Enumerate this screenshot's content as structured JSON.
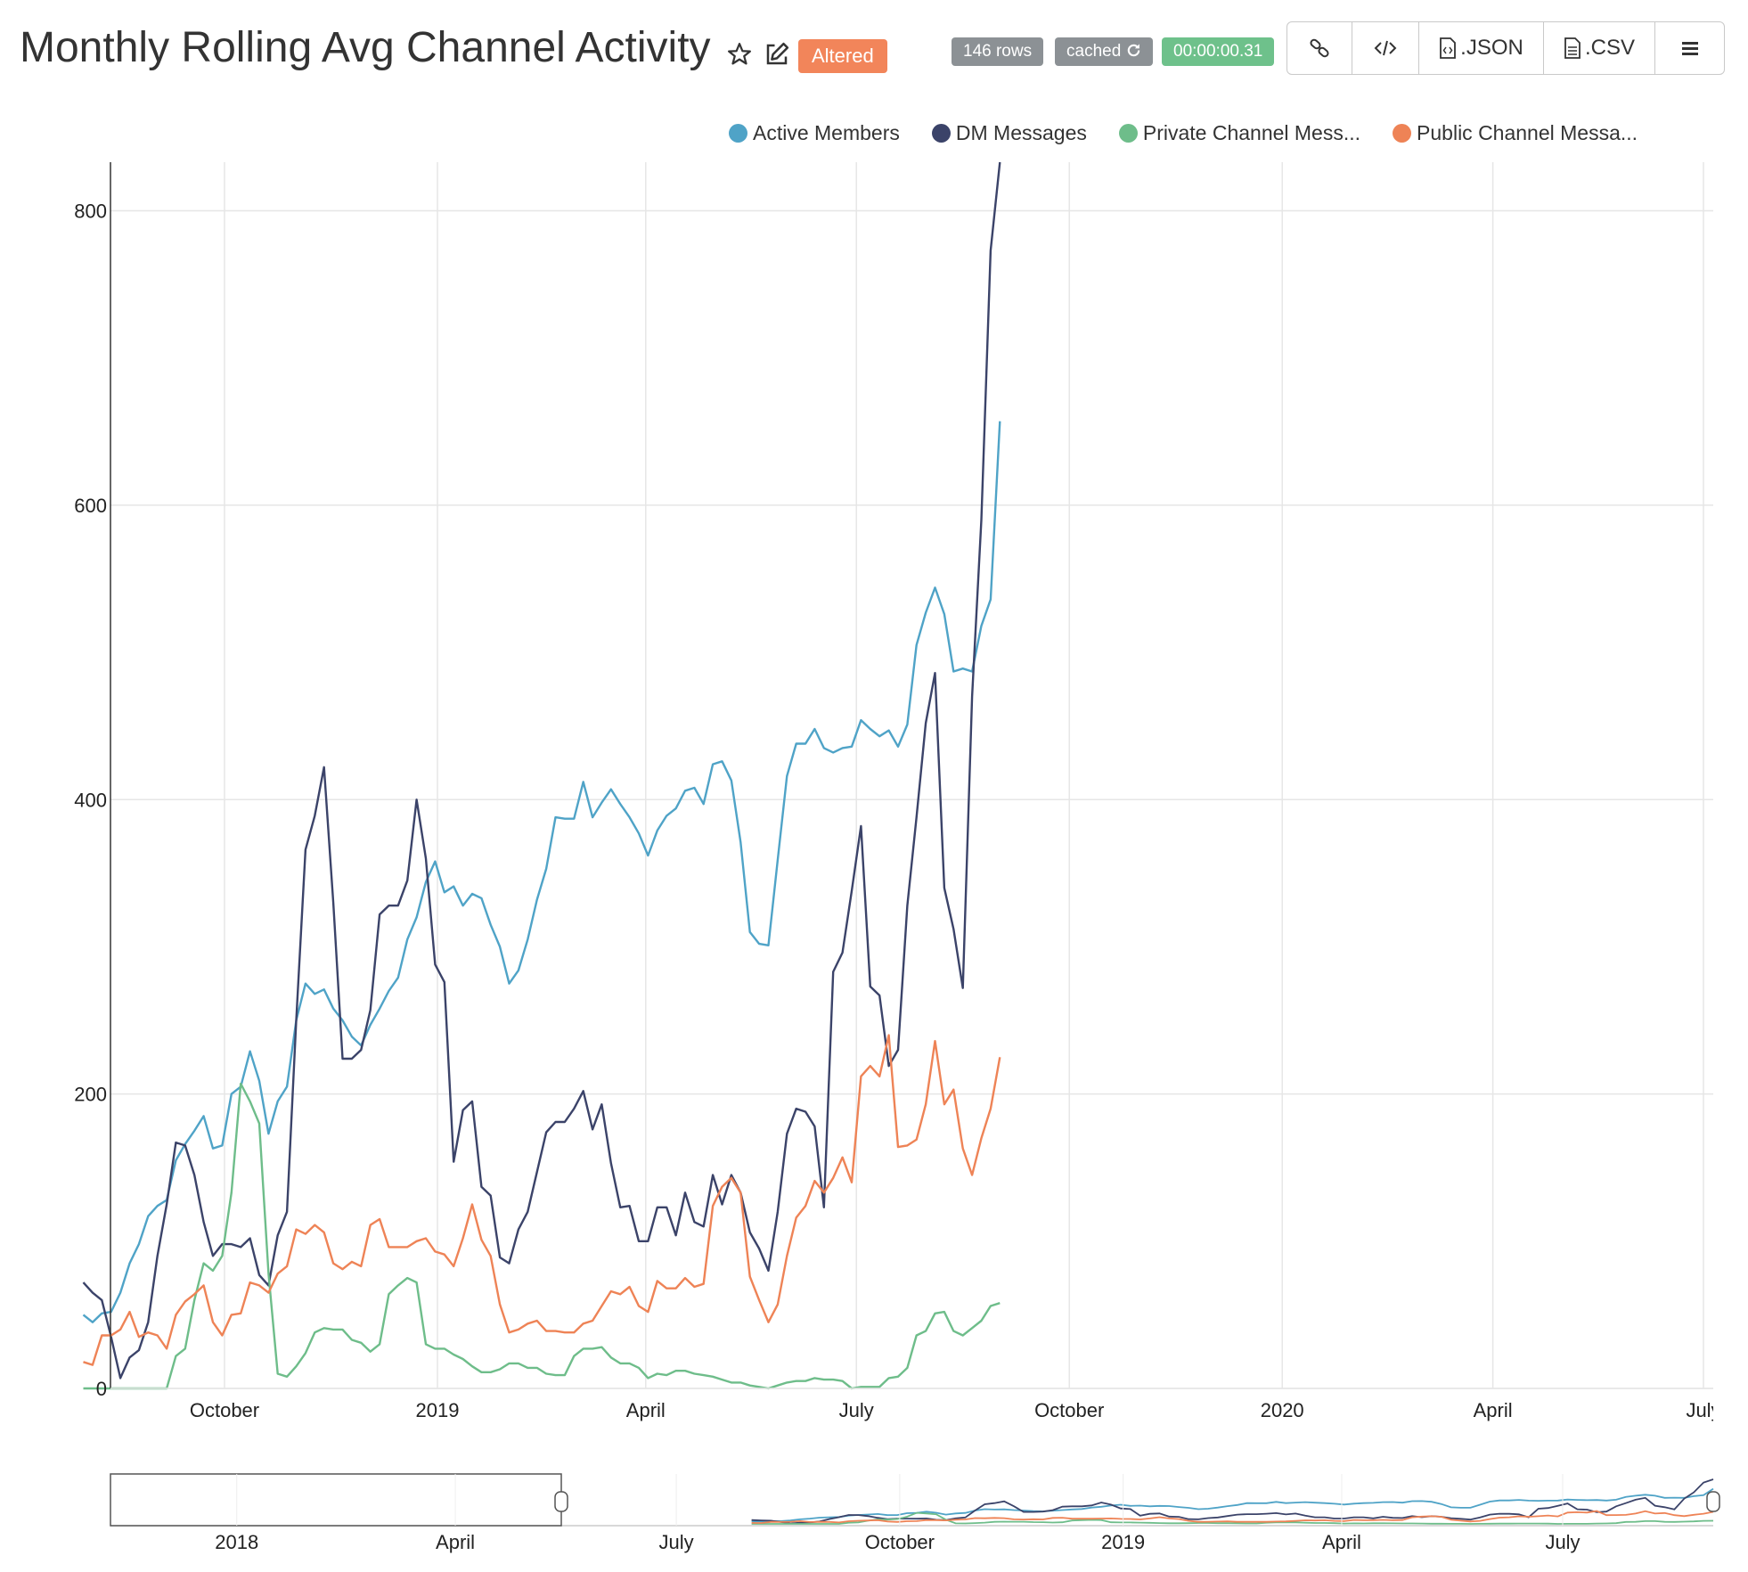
{
  "header": {
    "title": "Monthly Rolling Avg Channel Activity",
    "altered_label": "Altered",
    "rows_badge": "146 rows",
    "cached_badge": "cached",
    "time_badge": "00:00:00.31",
    "toolbar": {
      "json_label": ".JSON",
      "csv_label": ".CSV"
    }
  },
  "colors": {
    "active_members": "#4fa3c7",
    "dm_messages": "#3b4369",
    "private_channel": "#6ebd8a",
    "public_channel": "#ee8356",
    "altered_bg": "#f2855a",
    "badge_grey": "#8c9195",
    "badge_green": "#6ec18b"
  },
  "icons": [
    "star-icon",
    "edit-icon",
    "refresh-icon",
    "link-icon",
    "code-icon",
    "file-code-icon",
    "file-icon",
    "menu-icon"
  ],
  "chart_data": {
    "type": "line",
    "x_start_date": "2018-08-01",
    "x_step_days": 4,
    "x_tick_labels": [
      "October",
      "2019",
      "April",
      "July",
      "October",
      "2020",
      "April",
      "July"
    ],
    "x_tick_dates": [
      "2018-10-01",
      "2019-01-01",
      "2019-04-01",
      "2019-07-01",
      "2019-10-01",
      "2020-01-01",
      "2020-04-01",
      "2020-07-01"
    ],
    "ylim": [
      0,
      833
    ],
    "y_ticks": [
      0,
      200,
      400,
      600,
      800
    ],
    "grid": true,
    "legend_position": "top-right",
    "series": [
      {
        "name": "Active Members",
        "color_key": "active_members",
        "values": [
          50,
          45,
          51,
          52,
          65,
          85,
          98,
          117,
          124,
          128,
          155,
          166,
          175,
          185,
          163,
          165,
          200,
          205,
          229,
          209,
          173,
          195,
          205,
          250,
          275,
          268,
          271,
          258,
          250,
          239,
          233,
          247,
          258,
          270,
          279,
          305,
          320,
          344,
          358,
          337,
          341,
          328,
          336,
          333,
          315,
          300,
          275,
          284,
          305,
          332,
          353,
          388,
          387,
          387,
          412,
          388,
          398,
          407,
          397,
          388,
          377,
          362,
          379,
          389,
          394,
          406,
          408,
          397,
          424,
          426,
          413,
          371,
          310,
          302,
          301,
          359,
          416,
          438,
          438,
          448,
          435,
          432,
          435,
          436,
          454,
          448,
          443,
          447,
          436,
          451,
          505,
          527,
          544,
          526,
          487,
          489,
          487,
          518,
          536,
          657
        ]
      },
      {
        "name": "DM Messages",
        "color_key": "dm_messages",
        "values": [
          72,
          65,
          60,
          35,
          7,
          21,
          26,
          45,
          90,
          125,
          167,
          165,
          145,
          113,
          90,
          98,
          98,
          96,
          102,
          77,
          70,
          104,
          120,
          250,
          366,
          389,
          422,
          330,
          224,
          224,
          230,
          257,
          322,
          328,
          328,
          345,
          400,
          360,
          288,
          276,
          154,
          189,
          195,
          137,
          131,
          89,
          85,
          108,
          120,
          147,
          174,
          181,
          181,
          190,
          202,
          176,
          193,
          153,
          123,
          124,
          100,
          100,
          123,
          123,
          104,
          133,
          113,
          110,
          145,
          125,
          145,
          133,
          106,
          95,
          80,
          120,
          173,
          190,
          188,
          178,
          123,
          283,
          296,
          338,
          382,
          273,
          267,
          219,
          230,
          328,
          388,
          452,
          486,
          340,
          312,
          272,
          470,
          590,
          773,
          833
        ]
      },
      {
        "name": "Private Channel Mess...",
        "color_key": "private_channel",
        "values": [
          0,
          0,
          0,
          0,
          0,
          0,
          0,
          0,
          0,
          0,
          22,
          27,
          60,
          85,
          80,
          90,
          133,
          207,
          195,
          180,
          78,
          10,
          8,
          15,
          24,
          38,
          41,
          40,
          40,
          33,
          31,
          25,
          30,
          64,
          70,
          75,
          72,
          30,
          27,
          27,
          23,
          20,
          15,
          11,
          11,
          13,
          17,
          17,
          14,
          14,
          10,
          9,
          9,
          22,
          27,
          27,
          28,
          21,
          17,
          17,
          14,
          7,
          10,
          9,
          12,
          12,
          10,
          9,
          8,
          6,
          4,
          4,
          2,
          1,
          0,
          2,
          4,
          5,
          5,
          7,
          6,
          6,
          5,
          0,
          1,
          1,
          1,
          7,
          8,
          14,
          36,
          39,
          51,
          52,
          39,
          36,
          41,
          46,
          56,
          58
        ]
      },
      {
        "name": "Public Channel Messa...",
        "color_key": "public_channel",
        "values": [
          18,
          16,
          36,
          36,
          40,
          52,
          35,
          38,
          36,
          27,
          50,
          59,
          64,
          70,
          45,
          36,
          50,
          51,
          72,
          70,
          65,
          78,
          83,
          108,
          105,
          111,
          106,
          85,
          81,
          86,
          83,
          111,
          115,
          96,
          96,
          96,
          100,
          102,
          93,
          91,
          83,
          102,
          125,
          101,
          90,
          57,
          38,
          40,
          44,
          46,
          39,
          39,
          38,
          38,
          44,
          46,
          56,
          66,
          64,
          69,
          56,
          52,
          73,
          68,
          68,
          75,
          69,
          71,
          124,
          137,
          143,
          133,
          76,
          60,
          45,
          57,
          90,
          116,
          124,
          141,
          133,
          143,
          157,
          140,
          212,
          219,
          212,
          240,
          164,
          165,
          169,
          193,
          236,
          193,
          203,
          163,
          145,
          170,
          190,
          225
        ]
      }
    ]
  }
}
